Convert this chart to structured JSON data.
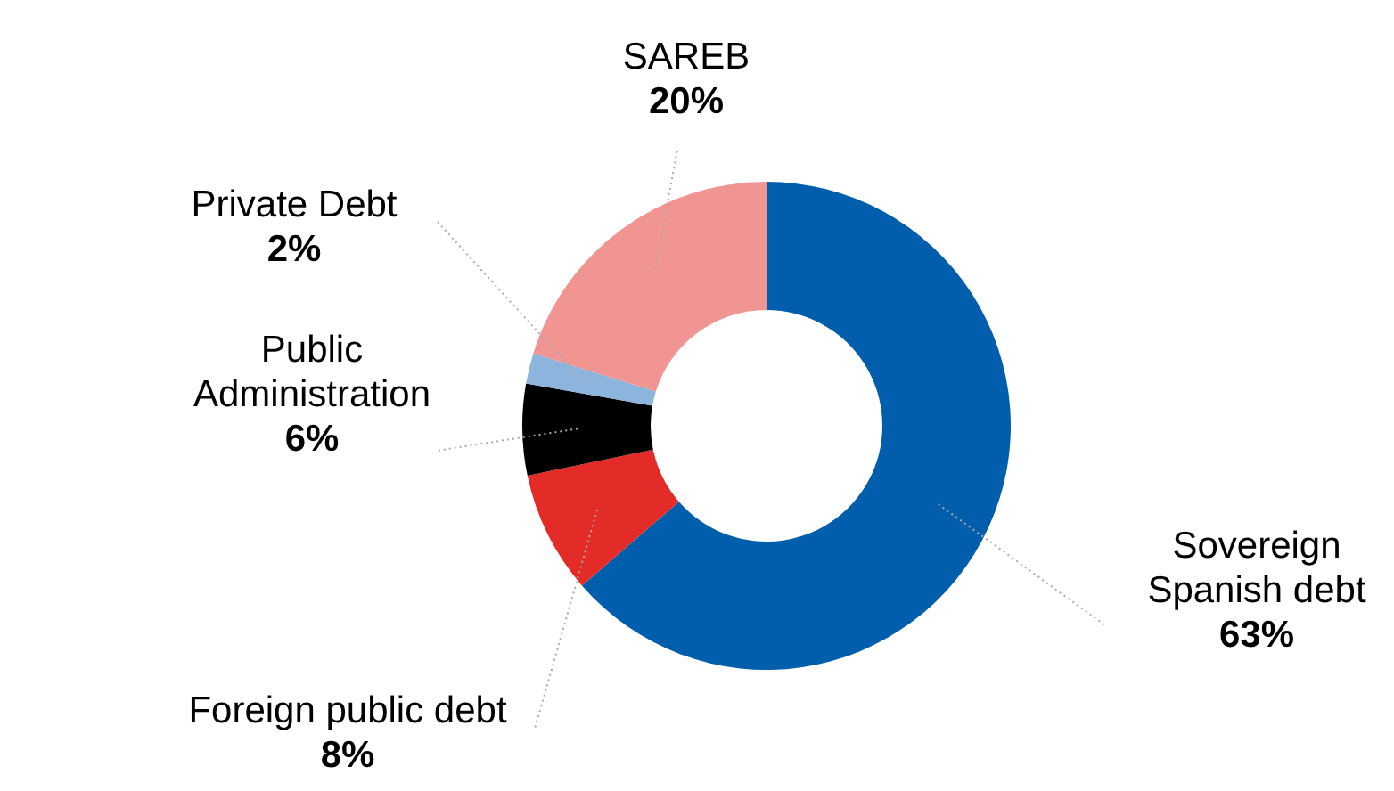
{
  "chart_data": {
    "type": "donut",
    "categories": [
      "Sovereign Spanish debt",
      "Foreign public debt",
      "Public Administration",
      "Private Debt",
      "SAREB"
    ],
    "values": [
      63,
      8,
      6,
      2,
      20
    ],
    "colors": [
      "#005eac",
      "#e32b27",
      "#000000",
      "#8db4dd",
      "#f19593"
    ],
    "value_labels": [
      "63%",
      "8%",
      "6%",
      "2%",
      "20%"
    ]
  }
}
